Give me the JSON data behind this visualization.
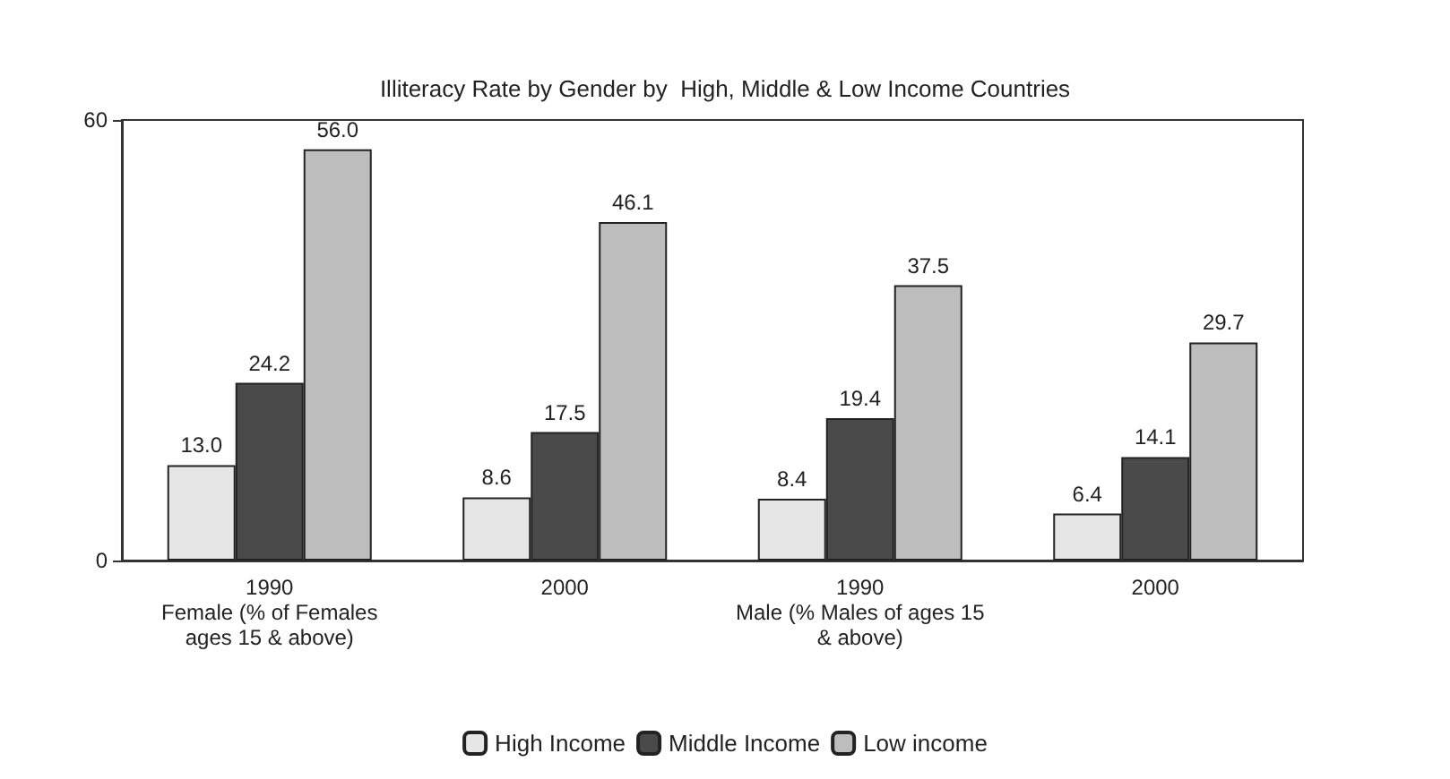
{
  "chart_data": {
    "type": "bar",
    "title": "Illiteracy Rate by Gender by  High, Middle & Low Income Countries",
    "categories": [
      "1990\nFemale (% of Females\nages 15 & above)",
      "2000",
      "1990\nMale (% Males of ages 15\n& above)",
      "2000"
    ],
    "series": [
      {
        "name": "High Income",
        "color": "#e6e6e6",
        "values": [
          13.0,
          8.6,
          8.4,
          6.4
        ],
        "value_labels": [
          "13.0",
          "8.6",
          "8.4",
          "6.4"
        ]
      },
      {
        "name": "Middle Income",
        "color": "#4a4a4a",
        "values": [
          24.2,
          17.5,
          19.4,
          14.1
        ],
        "value_labels": [
          "24.2",
          "17.5",
          "19.4",
          "14.1"
        ]
      },
      {
        "name": "Low income",
        "color": "#bdbdbd",
        "values": [
          56.0,
          46.1,
          37.5,
          29.7
        ],
        "value_labels": [
          "56.0",
          "46.1",
          "37.5",
          "29.7"
        ]
      }
    ],
    "ylim": [
      0,
      60
    ],
    "yticks": [
      0,
      60
    ],
    "grid": false,
    "legend": "bottom"
  }
}
